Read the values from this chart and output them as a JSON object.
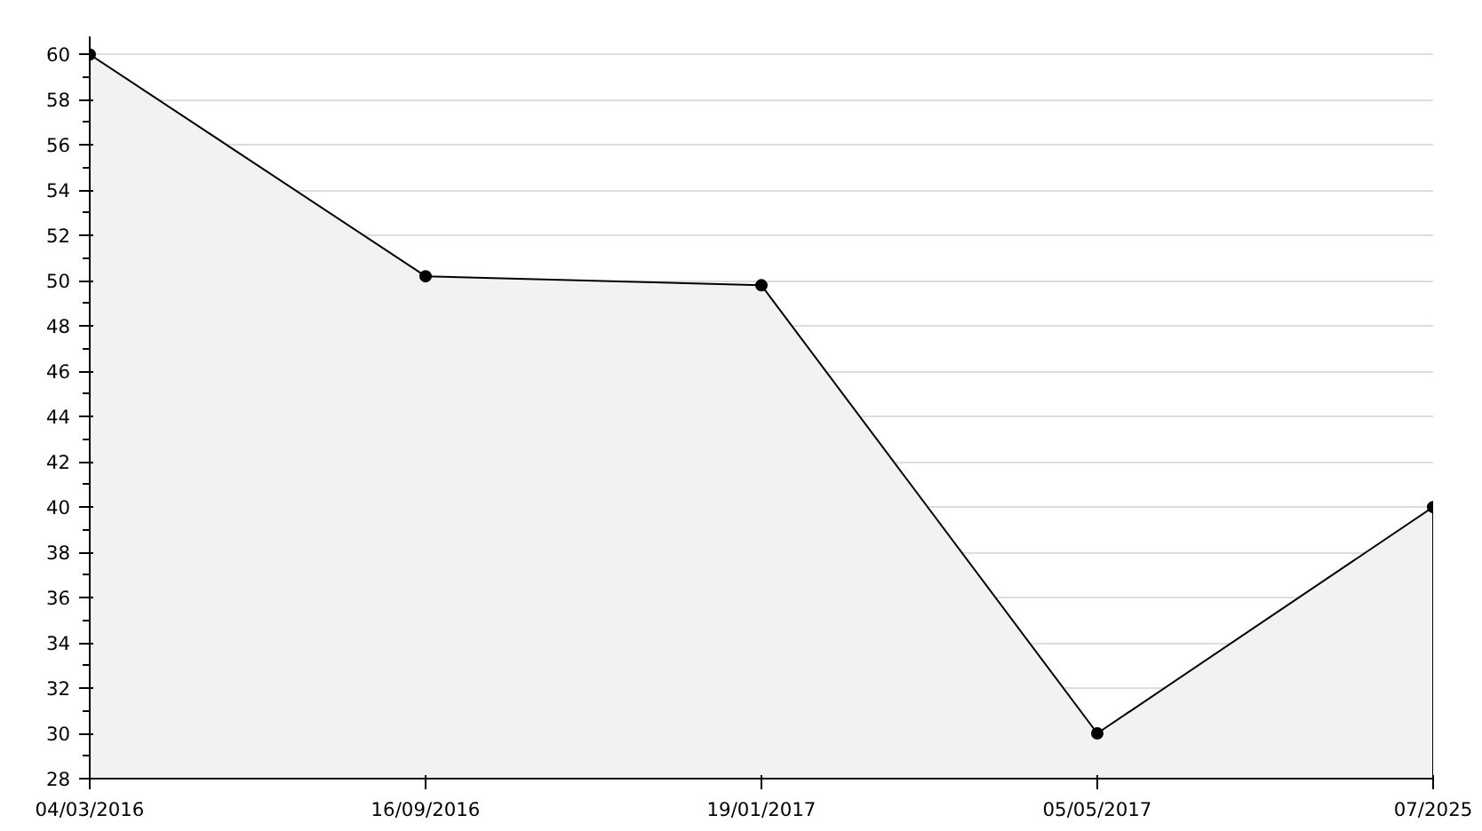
{
  "chart_data": {
    "type": "area",
    "categories": [
      "04/03/2016",
      "16/09/2016",
      "19/01/2017",
      "05/05/2017",
      "07/2025"
    ],
    "series": [
      {
        "color": "#000000",
        "values": [
          60,
          50.2,
          49.8,
          30,
          40
        ]
      }
    ],
    "ylim": [
      28,
      60.8
    ],
    "yticks": [
      28,
      30,
      32,
      34,
      36,
      38,
      40,
      42,
      44,
      46,
      48,
      50,
      52,
      54,
      56,
      58,
      60
    ],
    "grid": "y",
    "marker": "circle",
    "line_style": "solid"
  }
}
